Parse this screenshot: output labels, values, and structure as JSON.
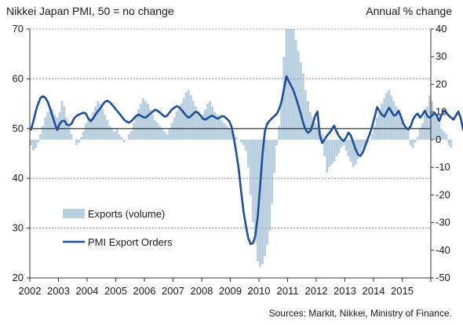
{
  "header": {
    "title": "Nikkei Japan PMI, 50 = no change",
    "right_axis_title": "Annual % change"
  },
  "footer": {
    "source": "Sources: Markit, Nikkei, Ministry of Finance."
  },
  "colors": {
    "bars": "#b8cfe0",
    "line": "#1f4e9a",
    "axis": "#333333",
    "refline": "#222222"
  },
  "chart_data": {
    "type": "bar+line",
    "x_ticks": [
      "2002",
      "2003",
      "2004",
      "2005",
      "2006",
      "2007",
      "2008",
      "2009",
      "2010",
      "2011",
      "2012",
      "2013",
      "2014",
      "2015"
    ],
    "left_axis": {
      "ylim": [
        20,
        70
      ],
      "ticks": [
        "70",
        "60",
        "50",
        "40",
        "30",
        "20"
      ]
    },
    "right_axis": {
      "ylim": [
        -50,
        40
      ],
      "ticks": [
        "40",
        "30",
        "20",
        "10",
        "0",
        "-10",
        "-20",
        "-30",
        "-40",
        "-50"
      ]
    },
    "legend": {
      "placement": "bottom-left",
      "items": [
        "Exports (volume)",
        "PMI Export Orders"
      ]
    },
    "series": [
      {
        "name": "Exports (volume)",
        "type": "bar",
        "axis": "right",
        "start": "2002-01",
        "values": [
          -2,
          -4,
          -3,
          -1,
          2,
          5,
          8,
          10,
          12,
          11,
          9,
          8,
          10,
          14,
          12,
          8,
          5,
          2,
          0,
          -2,
          -1,
          1,
          3,
          6,
          7,
          8,
          10,
          12,
          14,
          13,
          11,
          9,
          7,
          5,
          4,
          3,
          4,
          2,
          1,
          -1,
          0,
          2,
          3,
          6,
          9,
          11,
          13,
          15,
          14,
          13,
          11,
          9,
          7,
          6,
          5,
          4,
          3,
          2,
          4,
          6,
          8,
          10,
          11,
          13,
          15,
          17,
          18,
          16,
          14,
          12,
          10,
          8,
          9,
          11,
          13,
          14,
          12,
          10,
          9,
          8,
          7,
          6,
          5,
          4,
          3,
          2,
          1,
          0,
          -1,
          -2,
          -4,
          -10,
          -20,
          -30,
          -37,
          -44,
          -46,
          -45,
          -42,
          -38,
          -33,
          -23,
          -12,
          -2,
          5,
          15,
          30,
          40,
          40,
          40,
          40,
          36,
          32,
          28,
          24,
          18,
          14,
          10,
          8,
          6,
          5,
          4,
          2,
          -6,
          -12,
          -10,
          -9,
          -8,
          -6,
          -5,
          -3,
          -2,
          -4,
          -6,
          -8,
          -10,
          -9,
          -7,
          -5,
          -3,
          -2,
          -1,
          0,
          2,
          5,
          8,
          10,
          13,
          15,
          17,
          18,
          16,
          14,
          12,
          10,
          8,
          6,
          4,
          3,
          -2,
          -3,
          -1,
          1,
          4,
          6,
          9,
          12,
          16,
          14,
          10,
          8,
          6,
          4,
          3,
          2,
          -2,
          -3
        ]
      },
      {
        "name": "PMI Export Orders",
        "type": "line",
        "axis": "left",
        "start": "2002-01",
        "values": [
          49.8,
          51.5,
          53.5,
          55,
          56.2,
          56.5,
          56.2,
          55.4,
          54,
          52.5,
          51,
          49.7,
          51,
          51.5,
          51.6,
          50.8,
          50.7,
          51,
          52,
          52.5,
          52.8,
          53,
          53.2,
          53,
          52,
          51.5,
          52,
          52.8,
          53.5,
          54,
          54.8,
          55.4,
          55.6,
          55.3,
          54.8,
          54.2,
          53.6,
          53,
          52.4,
          51.8,
          51.4,
          51.2,
          51.5,
          52,
          52.5,
          52.8,
          52.6,
          52.3,
          52.2,
          52.6,
          53,
          53.4,
          53.8,
          53.6,
          53.2,
          52.8,
          52.4,
          52.6,
          53.2,
          53.8,
          54.2,
          54.5,
          54.3,
          53.8,
          53.2,
          52.6,
          52.2,
          52.5,
          53,
          53.4,
          53.2,
          52.6,
          52,
          51.8,
          52.1,
          52.4,
          52.6,
          52.3,
          52,
          52.2,
          52.5,
          52.4,
          52,
          51.5,
          50.4,
          48,
          45.2,
          42,
          37.5,
          33.5,
          30.5,
          28,
          26.8,
          27,
          28.5,
          32.5,
          38.5,
          45,
          49.5,
          51,
          51.6,
          52.1,
          52.5,
          53,
          54,
          55.5,
          58,
          60.5,
          59.5,
          58.6,
          57.6,
          56.2,
          54.6,
          53,
          51.2,
          49.8,
          49.2,
          49.5,
          50.8,
          52.5,
          53.4,
          48.6,
          47.1,
          47.8,
          48.6,
          49.1,
          49.8,
          50.6,
          49.4,
          48.5,
          47.9,
          47.5,
          48.2,
          49.2,
          48.6,
          47.2,
          45.8,
          44.8,
          44.5,
          45.2,
          46.5,
          47.8,
          49,
          50.6,
          52.4,
          54.3,
          53.5,
          52.8,
          52.4,
          53.3,
          54.2,
          53.4,
          52.6,
          52.8,
          53.6,
          52.4,
          51,
          50.2,
          49.8,
          50.4,
          51.8,
          52.6,
          53,
          52.2,
          52.8,
          53.6,
          52.5,
          52.2,
          52.6,
          53.2,
          52.6,
          51.5,
          52.8,
          53.6,
          53.2,
          52.6,
          52.2,
          51.8,
          52.6,
          53.4,
          52.2,
          49.8,
          51.3,
          52.4,
          53.2
        ]
      }
    ]
  }
}
